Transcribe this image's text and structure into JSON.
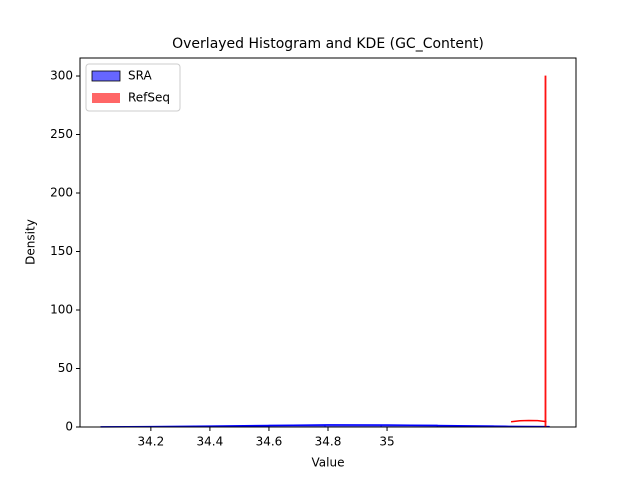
{
  "chart_data": {
    "type": "histogram",
    "title": "Overlayed Histogram and KDE (GC_Content)",
    "x_label": "Value",
    "y_label": "Density",
    "xlim": [
      33.96,
      35.64
    ],
    "xticks": [
      34.2,
      34.4,
      34.6,
      34.8,
      35.0
    ],
    "ylim": [
      0,
      315.4
    ],
    "yticks": [
      0,
      50,
      100,
      150,
      200,
      250,
      300
    ],
    "legend": "upper left",
    "series": [
      {
        "name": "SRA",
        "color": "#0000ff",
        "bins": [
          34.03,
          34.22,
          34.41,
          34.6,
          34.79,
          34.98,
          35.17,
          35.36,
          35.55
        ],
        "counts": [
          0.2,
          0.4,
          0.8,
          1.5,
          1.8,
          1.6,
          1.0,
          0.4
        ],
        "kde_x": [
          34.03,
          34.2,
          34.4,
          34.6,
          34.8,
          35.0,
          35.2,
          35.4,
          35.55
        ],
        "kde_y": [
          0.1,
          0.3,
          0.7,
          1.3,
          1.8,
          1.7,
          1.2,
          0.6,
          0.3
        ]
      },
      {
        "name": "RefSeq",
        "color": "#ff0000",
        "bins": [
          35.535,
          35.5383
        ],
        "counts": [
          300
        ],
        "kde_x": [
          35.42,
          35.45,
          35.48,
          35.51,
          35.54
        ],
        "kde_y": [
          4.5,
          5.3,
          5.6,
          5.4,
          4.6
        ]
      }
    ]
  }
}
